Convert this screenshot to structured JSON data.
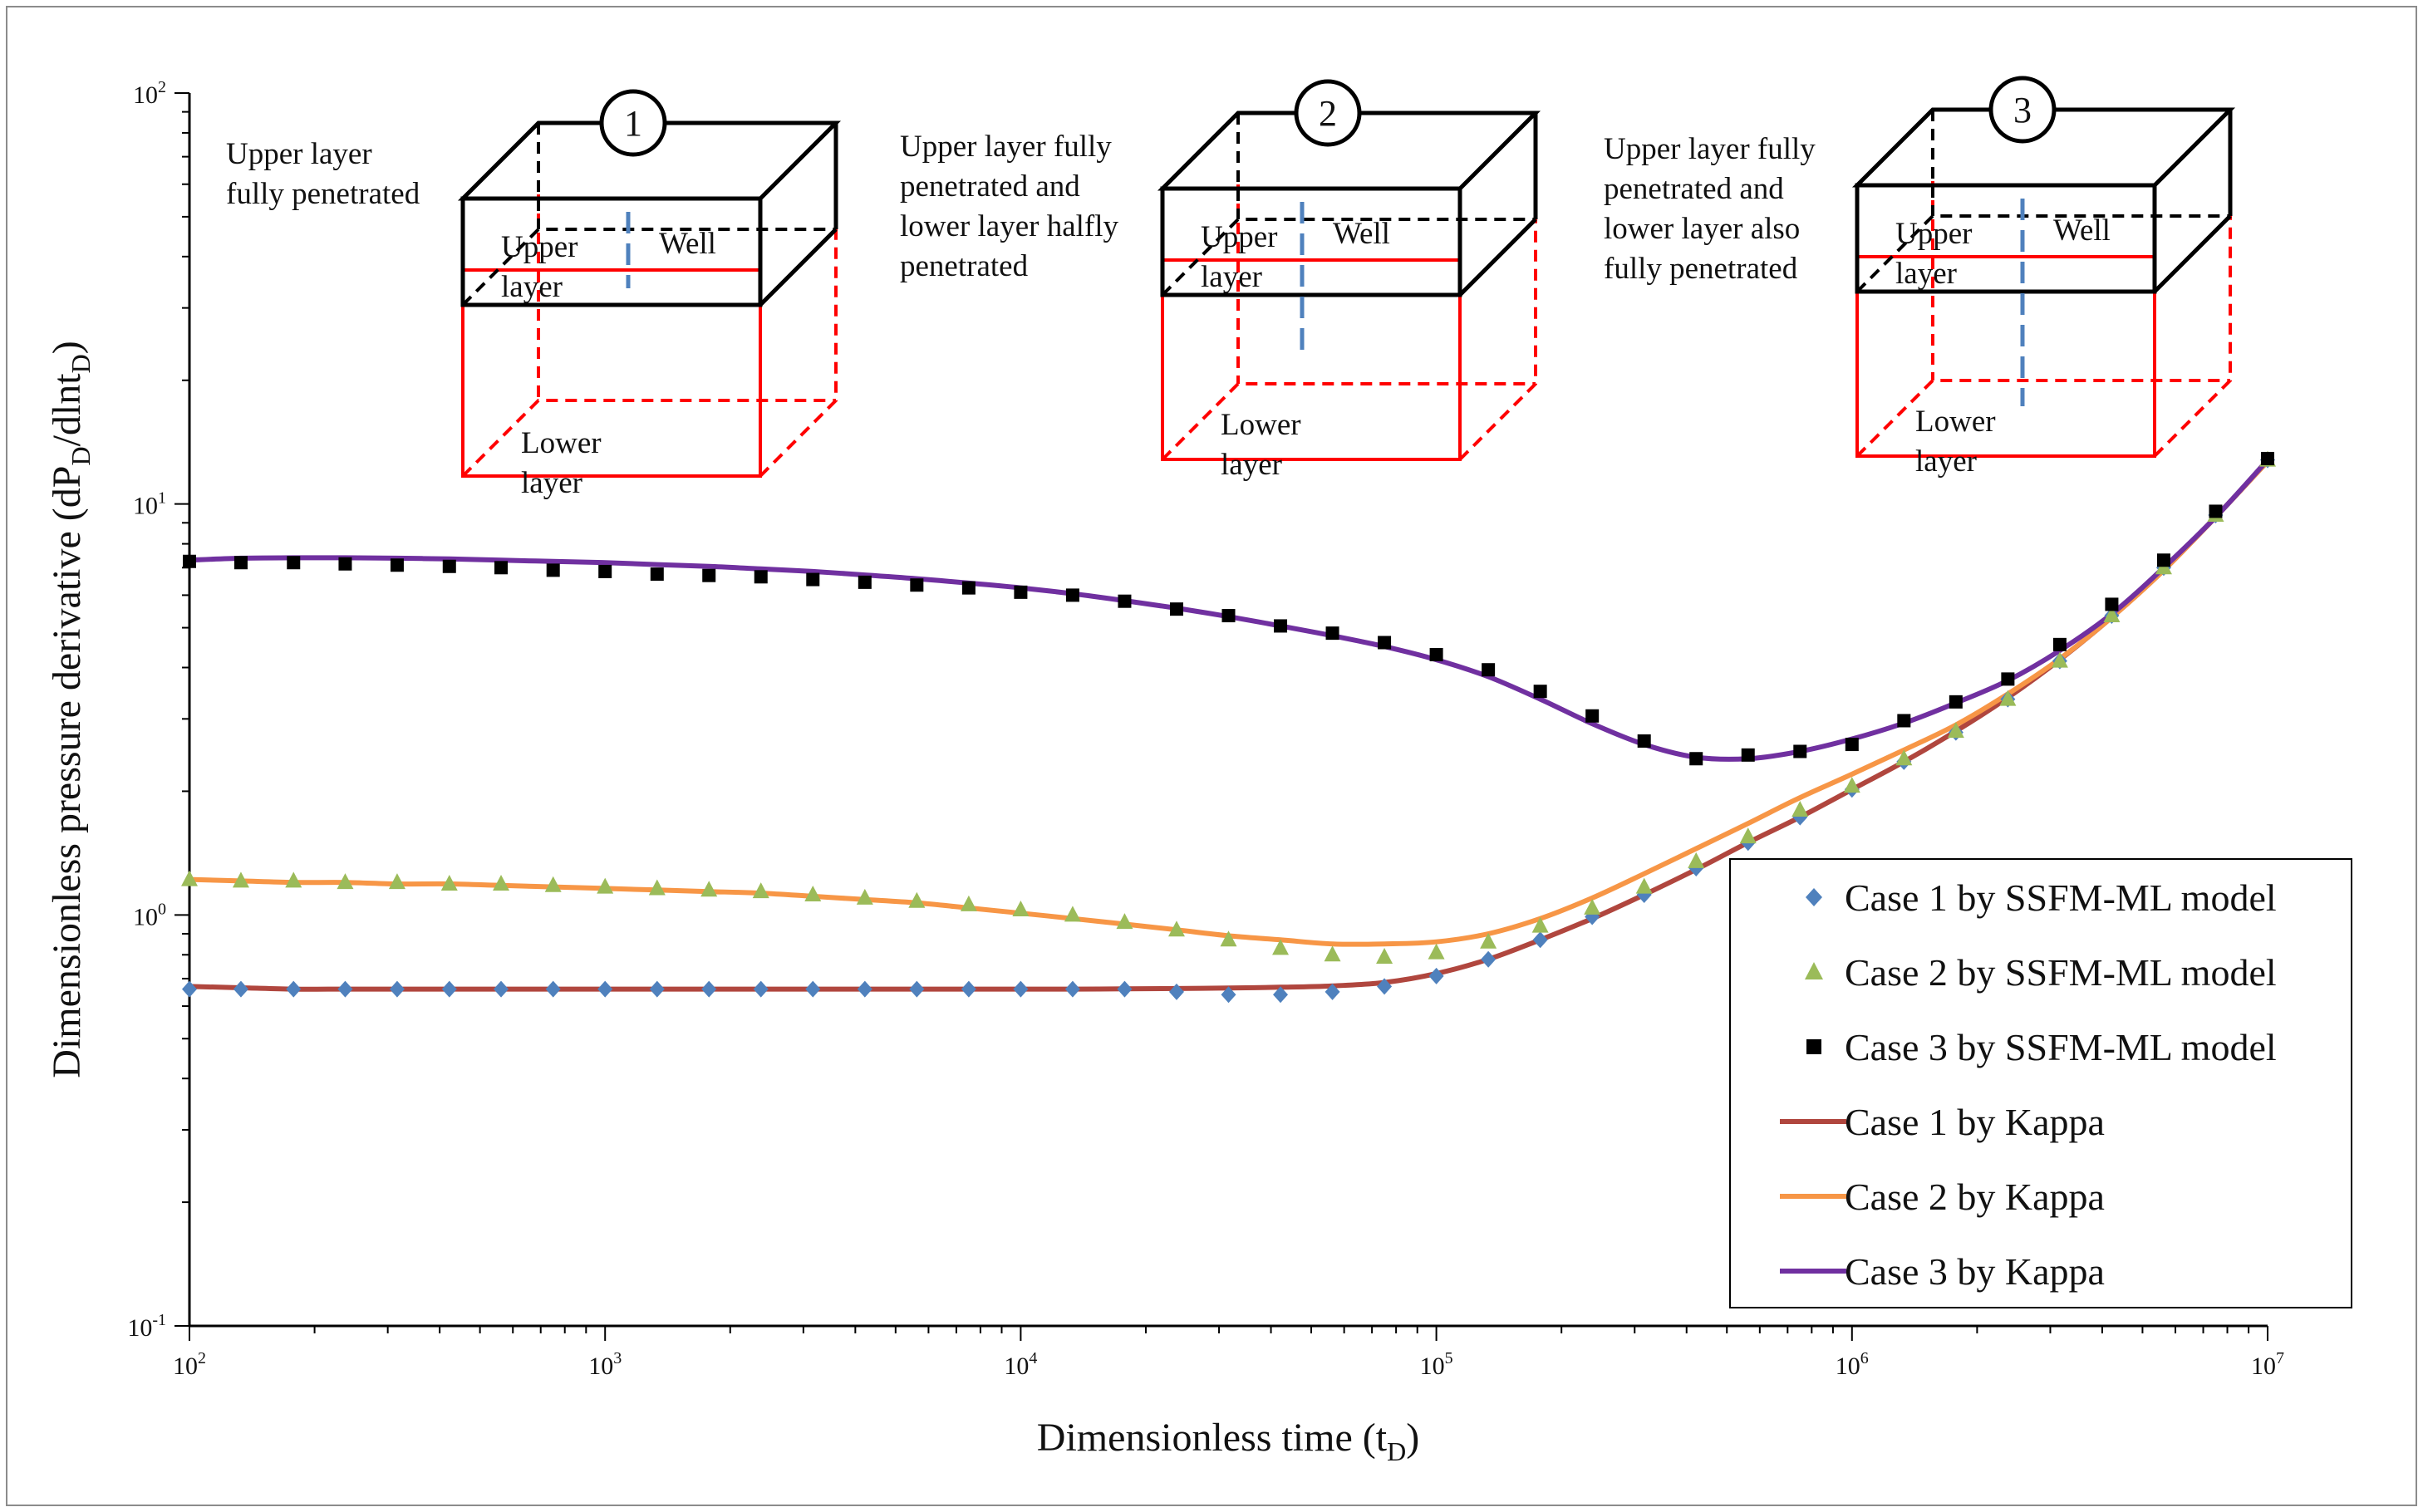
{
  "chart_data": {
    "type": "scatter",
    "title": "",
    "xlabel": {
      "main": "Dimensionless time (t",
      "sub": "D",
      "tail": ")"
    },
    "ylabel": {
      "p1": "Dimensionless pressure derivative (dP",
      "s1": "D",
      "p2": "/dlnt",
      "s2": "D",
      "p3": ")"
    },
    "xscale": "log",
    "yscale": "log",
    "xlim": [
      100,
      10000000
    ],
    "ylim": [
      0.1,
      100
    ],
    "x_ticks": [
      {
        "base": "10",
        "exp": "2",
        "value": 100
      },
      {
        "base": "10",
        "exp": "3",
        "value": 1000
      },
      {
        "base": "10",
        "exp": "4",
        "value": 10000
      },
      {
        "base": "10",
        "exp": "5",
        "value": 100000
      },
      {
        "base": "10",
        "exp": "6",
        "value": 1000000
      },
      {
        "base": "10",
        "exp": "7",
        "value": 10000000
      }
    ],
    "y_ticks": [
      {
        "base": "10",
        "exp": "-1",
        "value": 0.1
      },
      {
        "base": "10",
        "exp": "0",
        "value": 1
      },
      {
        "base": "10",
        "exp": "1",
        "value": 10
      },
      {
        "base": "10",
        "exp": "2",
        "value": 100
      }
    ],
    "legend_position": "bottom-right",
    "x": [
      100,
      133,
      178,
      237,
      316,
      422,
      562,
      750,
      1000,
      1334,
      1778,
      2371,
      3162,
      4217,
      5623,
      7499,
      10000,
      13335,
      17783,
      23714,
      31623,
      42170,
      56234,
      74989,
      100000,
      133352,
      177828,
      237137,
      316228,
      421697,
      562341,
      749894,
      1000000,
      1333521,
      1778279,
      2371374,
      3162278,
      4216965,
      5623413,
      7498942,
      10000000
    ],
    "series": [
      {
        "name": "Case 1 by SSFM-ML model",
        "kind": "marker",
        "marker": "diamond",
        "color": "#4F81BD",
        "values": [
          0.66,
          0.66,
          0.66,
          0.66,
          0.66,
          0.66,
          0.66,
          0.66,
          0.66,
          0.66,
          0.66,
          0.66,
          0.66,
          0.66,
          0.66,
          0.66,
          0.66,
          0.66,
          0.66,
          0.65,
          0.64,
          0.64,
          0.65,
          0.67,
          0.71,
          0.78,
          0.87,
          0.99,
          1.12,
          1.3,
          1.5,
          1.73,
          2.02,
          2.36,
          2.78,
          3.35,
          4.15,
          5.35,
          7.0,
          9.4,
          12.8
        ]
      },
      {
        "name": "Case 2 by SSFM-ML model",
        "kind": "marker",
        "marker": "triangle",
        "color": "#9BBB59",
        "values": [
          1.22,
          1.21,
          1.21,
          1.2,
          1.2,
          1.19,
          1.19,
          1.18,
          1.17,
          1.16,
          1.15,
          1.14,
          1.12,
          1.1,
          1.08,
          1.06,
          1.03,
          1.0,
          0.96,
          0.92,
          0.87,
          0.83,
          0.8,
          0.79,
          0.81,
          0.86,
          0.94,
          1.04,
          1.17,
          1.35,
          1.55,
          1.8,
          2.06,
          2.4,
          2.8,
          3.35,
          4.15,
          5.35,
          7.0,
          9.4,
          12.8
        ]
      },
      {
        "name": "Case 3 by SSFM-ML model",
        "kind": "marker",
        "marker": "square",
        "color": "#000000",
        "values": [
          7.25,
          7.2,
          7.2,
          7.15,
          7.1,
          7.05,
          7.0,
          6.9,
          6.85,
          6.75,
          6.7,
          6.65,
          6.55,
          6.45,
          6.35,
          6.25,
          6.1,
          6.0,
          5.8,
          5.55,
          5.35,
          5.05,
          4.85,
          4.6,
          4.3,
          3.95,
          3.5,
          3.05,
          2.65,
          2.4,
          2.45,
          2.5,
          2.6,
          2.97,
          3.3,
          3.75,
          4.55,
          5.7,
          7.3,
          9.6,
          12.9
        ]
      },
      {
        "name": "Case 1 by Kappa",
        "kind": "line",
        "color": "#B0463E",
        "values": [
          0.67,
          0.665,
          0.66,
          0.66,
          0.66,
          0.66,
          0.66,
          0.66,
          0.66,
          0.66,
          0.66,
          0.66,
          0.66,
          0.66,
          0.66,
          0.66,
          0.66,
          0.66,
          0.661,
          0.662,
          0.664,
          0.667,
          0.672,
          0.685,
          0.72,
          0.78,
          0.87,
          0.98,
          1.12,
          1.29,
          1.5,
          1.73,
          2.02,
          2.36,
          2.8,
          3.38,
          4.18,
          5.3,
          6.9,
          9.3,
          12.7
        ]
      },
      {
        "name": "Case 2 by Kappa",
        "kind": "line",
        "color": "#F79646",
        "values": [
          1.22,
          1.21,
          1.2,
          1.2,
          1.19,
          1.19,
          1.18,
          1.17,
          1.16,
          1.15,
          1.14,
          1.13,
          1.11,
          1.09,
          1.07,
          1.04,
          1.01,
          0.98,
          0.95,
          0.92,
          0.89,
          0.87,
          0.85,
          0.85,
          0.86,
          0.9,
          0.98,
          1.1,
          1.26,
          1.45,
          1.67,
          1.93,
          2.2,
          2.52,
          2.9,
          3.45,
          4.2,
          5.3,
          6.9,
          9.3,
          12.7
        ]
      },
      {
        "name": "Case 3 by Kappa",
        "kind": "line",
        "color": "#7030A0",
        "values": [
          7.3,
          7.38,
          7.4,
          7.4,
          7.38,
          7.35,
          7.3,
          7.25,
          7.2,
          7.12,
          7.05,
          6.95,
          6.85,
          6.72,
          6.58,
          6.42,
          6.25,
          6.05,
          5.82,
          5.58,
          5.32,
          5.05,
          4.78,
          4.5,
          4.18,
          3.8,
          3.35,
          2.92,
          2.6,
          2.42,
          2.4,
          2.5,
          2.68,
          2.93,
          3.28,
          3.72,
          4.4,
          5.4,
          7.0,
          9.3,
          12.8
        ]
      }
    ],
    "annotations": [
      {
        "number": "1",
        "caption": [
          "Upper layer",
          "fully penetrated"
        ],
        "upper_label": [
          "Upper",
          "layer"
        ],
        "lower_label": [
          "Lower",
          "layer"
        ],
        "well_label": "Well"
      },
      {
        "number": "2",
        "caption": [
          "Upper layer fully",
          "penetrated and",
          "lower layer halfly",
          "penetrated"
        ],
        "upper_label": [
          "Upper",
          "layer"
        ],
        "lower_label": [
          "Lower",
          "layer"
        ],
        "well_label": "Well"
      },
      {
        "number": "3",
        "caption": [
          "Upper layer fully",
          "penetrated and",
          "lower layer also",
          "fully penetrated"
        ],
        "upper_label": [
          "Upper",
          "layer"
        ],
        "lower_label": [
          "Lower",
          "layer"
        ],
        "well_label": "Well"
      }
    ],
    "colors": {
      "upper_box": "#000000",
      "lower_box": "#FF0000",
      "well": "#4F81BD",
      "frame": "#8C8C8C",
      "axis": "#000000"
    }
  }
}
